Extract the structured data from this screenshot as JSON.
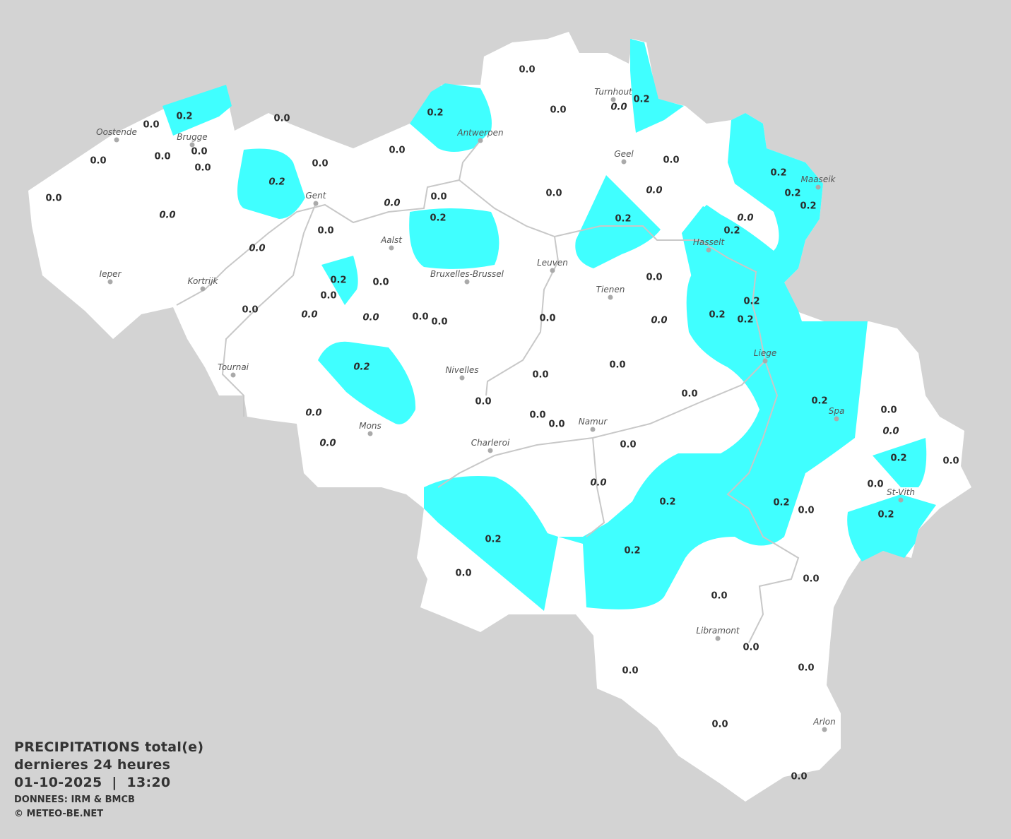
{
  "map": {
    "colors": {
      "background": "#d3d3d3",
      "land": "#ffffff",
      "precip_0_2": "#40ffff",
      "river": "#c8c8c8",
      "city_dot": "#aaaaaa"
    },
    "cities": [
      "Oostende",
      "Brugge",
      "Antwerpen",
      "Turnhout",
      "Geel",
      "Maaseik",
      "Gent",
      "Aalst",
      "Hasselt",
      "Leuven",
      "Bruxelles-Brussel",
      "Ieper",
      "Kortrijk",
      "Tienen",
      "Liege",
      "Tournai",
      "Nivelles",
      "Spa",
      "Mons",
      "Namur",
      "Charleroi",
      "St-Vith",
      "Libramont",
      "Arlon"
    ],
    "values": [
      {
        "v": "0.0"
      },
      {
        "v": "0.0"
      },
      {
        "v": "0.0",
        "italic": true
      },
      {
        "v": "0.2"
      },
      {
        "v": "0.2"
      },
      {
        "v": "0.0"
      },
      {
        "v": "0.0"
      },
      {
        "v": "0.0"
      },
      {
        "v": "0.0"
      },
      {
        "v": "0.0"
      },
      {
        "v": "0.0"
      },
      {
        "v": "0.0"
      },
      {
        "v": "0.0"
      },
      {
        "v": "0.2"
      },
      {
        "v": "0.0"
      },
      {
        "v": "0.0",
        "italic": true
      },
      {
        "v": "0.2",
        "italic": true
      },
      {
        "v": "0.0",
        "italic": true
      },
      {
        "v": "0.0"
      },
      {
        "v": "0.2"
      },
      {
        "v": "0.0"
      },
      {
        "v": "0.0",
        "italic": true
      },
      {
        "v": "0.0"
      },
      {
        "v": "0.0"
      },
      {
        "v": "0.0",
        "italic": true
      },
      {
        "v": "0.2"
      },
      {
        "v": "0.0",
        "italic": true
      },
      {
        "v": "0.2"
      },
      {
        "v": "0.2"
      },
      {
        "v": "0.2"
      },
      {
        "v": "0.2"
      },
      {
        "v": "0.2"
      },
      {
        "v": "0.0"
      },
      {
        "v": "0.0"
      },
      {
        "v": "0.0"
      },
      {
        "v": "0.0",
        "italic": true
      },
      {
        "v": "0.0",
        "italic": true
      },
      {
        "v": "0.0"
      },
      {
        "v": "0.0"
      },
      {
        "v": "0.0"
      },
      {
        "v": "0.0"
      },
      {
        "v": "0.0",
        "italic": true
      },
      {
        "v": "0.2"
      },
      {
        "v": "0.2"
      },
      {
        "v": "0.2"
      },
      {
        "v": "0.2",
        "italic": true
      },
      {
        "v": "0.0"
      },
      {
        "v": "0.0"
      },
      {
        "v": "0.0"
      },
      {
        "v": "0.0"
      },
      {
        "v": "0.2"
      },
      {
        "v": "0.0"
      },
      {
        "v": "0.0",
        "italic": true
      },
      {
        "v": "0.0",
        "italic": true
      },
      {
        "v": "0.0"
      },
      {
        "v": "0.0"
      },
      {
        "v": "0.0",
        "italic": true
      },
      {
        "v": "0.0"
      },
      {
        "v": "0.2"
      },
      {
        "v": "0.0"
      },
      {
        "v": "0.0"
      },
      {
        "v": "0.0",
        "italic": true
      },
      {
        "v": "0.2"
      },
      {
        "v": "0.2"
      },
      {
        "v": "0.0"
      },
      {
        "v": "0.2"
      },
      {
        "v": "0.2"
      },
      {
        "v": "0.2"
      },
      {
        "v": "0.0"
      },
      {
        "v": "0.0"
      },
      {
        "v": "0.0"
      },
      {
        "v": "0.0"
      },
      {
        "v": "0.0"
      },
      {
        "v": "0.0"
      },
      {
        "v": "0.0"
      },
      {
        "v": "0.0"
      }
    ]
  },
  "legend": {
    "title": "PRECIPITATIONS total(e)",
    "period": "dernieres 24 heures",
    "datetime": "01-10-2025  |  13:20",
    "source": "DONNEES: IRM & BMCB",
    "copyright": "© METEO-BE.NET"
  }
}
